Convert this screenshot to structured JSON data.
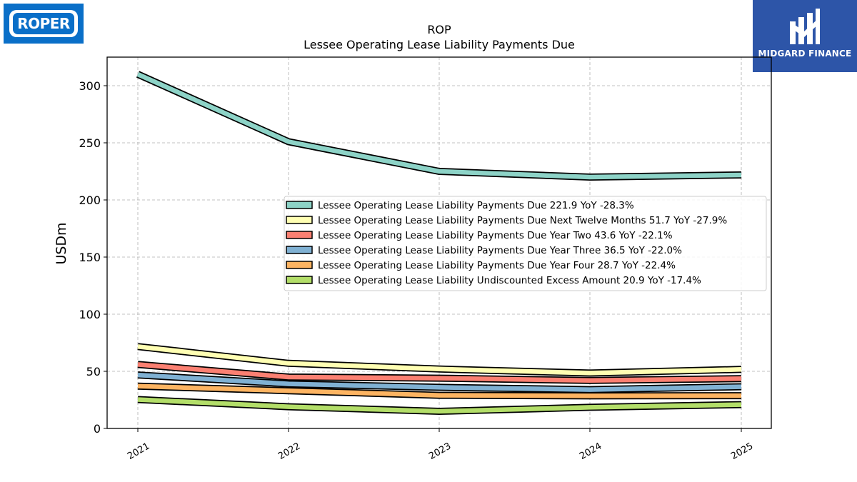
{
  "logos": {
    "left_text": "ROPER",
    "right_text": "MIDGARD FINANCE"
  },
  "colors": {
    "teal": "#8dd3c7",
    "yellow": "#ffffb3",
    "red": "#fb8072",
    "blue": "#80b1d3",
    "orange": "#fdb462",
    "green": "#b3de69",
    "roper_blue": "#0a6fc8",
    "midgard_blue": "#2d55a8"
  },
  "chart_data": {
    "type": "line",
    "title": "ROP",
    "subtitle": "Lessee Operating Lease Liability Payments Due",
    "xlabel": "",
    "ylabel": "USDm",
    "x": [
      "2021",
      "2022",
      "2023",
      "2024",
      "2025"
    ],
    "ylim": [
      0,
      325
    ],
    "yticks": [
      0,
      50,
      100,
      150,
      200,
      250,
      300
    ],
    "grid": true,
    "legend_position": "center-right",
    "series": [
      {
        "name": "Lessee Operating Lease Liability Payments Due  221.9 YoY -28.3%",
        "color": "#8dd3c7",
        "values": [
          310,
          251,
          225,
          220,
          221.9
        ]
      },
      {
        "name": "Lessee Operating Lease Liability Payments Due Next Twelve Months  51.7 YoY -27.9%",
        "color": "#ffffb3",
        "values": [
          71.7,
          57,
          52,
          48.5,
          51.7
        ]
      },
      {
        "name": "Lessee Operating Lease Liability Payments Due Year Two  43.6 YoY -22.1%",
        "color": "#fb8072",
        "values": [
          56,
          45,
          44,
          42,
          43.6
        ]
      },
      {
        "name": "Lessee Operating Lease Liability Payments Due Year Three  36.5 YoY -22.0%",
        "color": "#80b1d3",
        "values": [
          46.8,
          39,
          36,
          34,
          36.5
        ]
      },
      {
        "name": "Lessee Operating Lease Liability Payments Due Year Four  28.7 YoY -22.4%",
        "color": "#fdb462",
        "values": [
          37,
          33,
          29,
          28.5,
          28.7
        ]
      },
      {
        "name": "Lessee Operating Lease Liability Undiscounted Excess Amount  20.9 YoY -17.4%",
        "color": "#b3de69",
        "values": [
          25.3,
          19,
          15,
          18.5,
          20.9
        ]
      }
    ]
  }
}
